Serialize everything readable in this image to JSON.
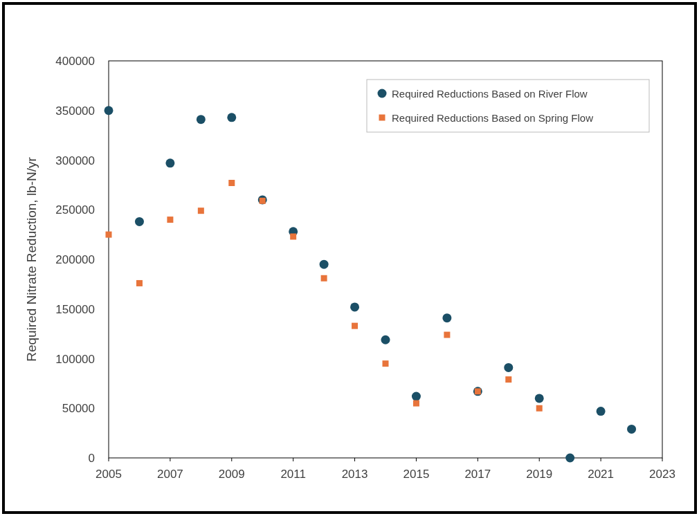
{
  "chart_data": {
    "type": "scatter",
    "ylabel": "Required Nitrate Reduction, lb-N/yr",
    "x": [
      2005,
      2006,
      2007,
      2008,
      2009,
      2010,
      2011,
      2012,
      2013,
      2014,
      2015,
      2016,
      2017,
      2018,
      2019,
      2020,
      2021,
      2022
    ],
    "series": [
      {
        "name": "Required Reductions Based on River Flow",
        "color": "#1b4f66",
        "marker": "circle",
        "values": [
          350000,
          238000,
          297000,
          341000,
          343000,
          260000,
          228000,
          195000,
          152000,
          119000,
          62000,
          141000,
          67000,
          91000,
          60000,
          0,
          47000,
          29000
        ]
      },
      {
        "name": "Required Reductions Based on Spring Flow",
        "color": "#e8743b",
        "marker": "square",
        "values": [
          225000,
          176000,
          240000,
          249000,
          277000,
          259000,
          223000,
          181000,
          133000,
          95000,
          55000,
          124000,
          67000,
          79000,
          50000,
          null,
          null,
          null
        ]
      }
    ],
    "xlim": [
      2005,
      2023
    ],
    "xticks": [
      2005,
      2007,
      2009,
      2011,
      2013,
      2015,
      2017,
      2019,
      2021,
      2023
    ],
    "ylim": [
      0,
      400000
    ],
    "yticks": [
      0,
      50000,
      100000,
      150000,
      200000,
      250000,
      300000,
      350000,
      400000
    ],
    "grid": false,
    "legend": "top right"
  }
}
